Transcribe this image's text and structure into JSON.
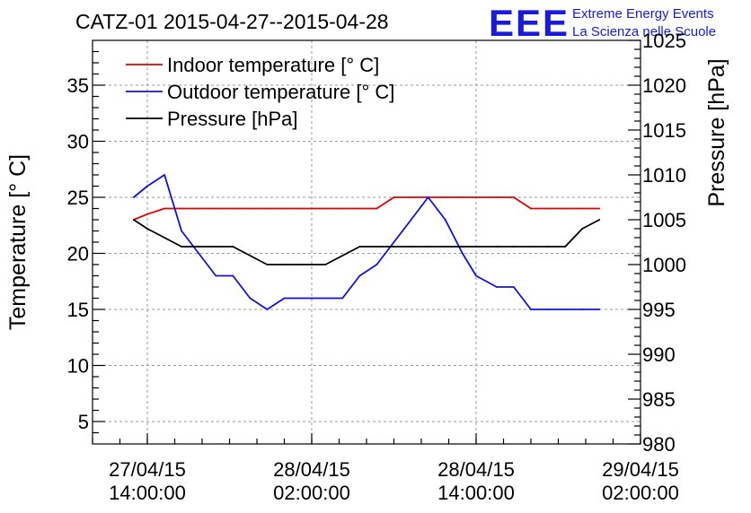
{
  "chart_data": {
    "type": "line",
    "title": "CATZ-01 2015-04-27--2015-04-28",
    "logo": {
      "mark": "EEE",
      "line1": "Extreme Energy Events",
      "line2": "La Scienza nelle Scuole",
      "color": "#1a1adf"
    },
    "ylabel": "Temperature [° C]",
    "y2label": "Pressure [hPa]",
    "xlim": [
      "2015-04-27 10:00",
      "2015-04-29 02:00"
    ],
    "x_ticks": [
      {
        "line1": "27/04/15",
        "line2": "14:00:00",
        "time": "2015-04-27 14:00"
      },
      {
        "line1": "28/04/15",
        "line2": "02:00:00",
        "time": "2015-04-28 02:00"
      },
      {
        "line1": "28/04/15",
        "line2": "14:00:00",
        "time": "2015-04-28 14:00"
      },
      {
        "line1": "29/04/15",
        "line2": "02:00:00",
        "time": "2015-04-29 02:00"
      }
    ],
    "ylim": [
      3,
      39
    ],
    "y_ticks": [
      5,
      10,
      15,
      20,
      25,
      30,
      35
    ],
    "y2lim": [
      980,
      1025
    ],
    "y2_ticks": [
      980,
      985,
      990,
      995,
      1000,
      1005,
      1010,
      1015,
      1020,
      1025
    ],
    "grid": true,
    "legend_position": "top-left",
    "series": [
      {
        "name": "Indoor temperature [° C]",
        "color": "#e00000",
        "axis": "left",
        "x": [
          "2015-04-27 13:00",
          "2015-04-27 14:00",
          "2015-04-27 15:15",
          "2015-04-27 16:30",
          "2015-04-27 17:45",
          "2015-04-27 19:00",
          "2015-04-27 20:15",
          "2015-04-27 21:30",
          "2015-04-27 22:45",
          "2015-04-28 00:00",
          "2015-04-28 01:15",
          "2015-04-28 02:00",
          "2015-04-28 03:00",
          "2015-04-28 04:15",
          "2015-04-28 05:30",
          "2015-04-28 06:45",
          "2015-04-28 08:00",
          "2015-04-28 09:15",
          "2015-04-28 10:30",
          "2015-04-28 11:45",
          "2015-04-28 13:00",
          "2015-04-28 14:00",
          "2015-04-28 15:30",
          "2015-04-28 16:45",
          "2015-04-28 18:00",
          "2015-04-28 19:15",
          "2015-04-28 20:30",
          "2015-04-28 21:45",
          "2015-04-28 23:00"
        ],
        "values": [
          23,
          23.5,
          24,
          24,
          24,
          24,
          24,
          24,
          24,
          24,
          24,
          24,
          24,
          24,
          24,
          24,
          25,
          25,
          25,
          25,
          25,
          25,
          25,
          25,
          24,
          24,
          24,
          24,
          24
        ]
      },
      {
        "name": "Outdoor temperature [° C]",
        "color": "#1010e0",
        "axis": "left",
        "x": [
          "2015-04-27 13:00",
          "2015-04-27 14:00",
          "2015-04-27 15:15",
          "2015-04-27 16:30",
          "2015-04-27 17:45",
          "2015-04-27 19:00",
          "2015-04-27 20:15",
          "2015-04-27 21:30",
          "2015-04-27 22:45",
          "2015-04-28 00:00",
          "2015-04-28 01:15",
          "2015-04-28 02:00",
          "2015-04-28 03:00",
          "2015-04-28 04:15",
          "2015-04-28 05:30",
          "2015-04-28 06:45",
          "2015-04-28 08:00",
          "2015-04-28 09:15",
          "2015-04-28 10:30",
          "2015-04-28 11:45",
          "2015-04-28 13:00",
          "2015-04-28 14:00",
          "2015-04-28 15:30",
          "2015-04-28 16:45",
          "2015-04-28 18:00",
          "2015-04-28 19:15",
          "2015-04-28 20:30",
          "2015-04-28 21:45",
          "2015-04-28 23:00"
        ],
        "values": [
          25,
          26,
          27,
          22,
          20,
          18,
          18,
          16,
          15,
          16,
          16,
          16,
          16,
          16,
          18,
          19,
          21,
          23,
          25,
          23,
          20,
          18,
          17,
          17,
          15,
          15,
          15,
          15,
          15
        ]
      },
      {
        "name": "Pressure [hPa]",
        "color": "#000000",
        "axis": "right",
        "x": [
          "2015-04-27 13:00",
          "2015-04-27 14:00",
          "2015-04-27 15:15",
          "2015-04-27 16:30",
          "2015-04-27 17:45",
          "2015-04-27 19:00",
          "2015-04-27 20:15",
          "2015-04-27 21:30",
          "2015-04-27 22:45",
          "2015-04-28 00:00",
          "2015-04-28 01:15",
          "2015-04-28 02:00",
          "2015-04-28 03:00",
          "2015-04-28 04:15",
          "2015-04-28 05:30",
          "2015-04-28 06:45",
          "2015-04-28 08:00",
          "2015-04-28 09:15",
          "2015-04-28 10:30",
          "2015-04-28 11:45",
          "2015-04-28 13:00",
          "2015-04-28 14:00",
          "2015-04-28 15:30",
          "2015-04-28 16:45",
          "2015-04-28 18:00",
          "2015-04-28 19:15",
          "2015-04-28 20:30",
          "2015-04-28 21:45",
          "2015-04-28 23:00"
        ],
        "values": [
          1005,
          1004,
          1003,
          1002,
          1002,
          1002,
          1002,
          1001,
          1000,
          1000,
          1000,
          1000,
          1000,
          1001,
          1002,
          1002,
          1002,
          1002,
          1002,
          1002,
          1002,
          1002,
          1002,
          1002,
          1002,
          1002,
          1002,
          1004,
          1005
        ]
      }
    ]
  }
}
